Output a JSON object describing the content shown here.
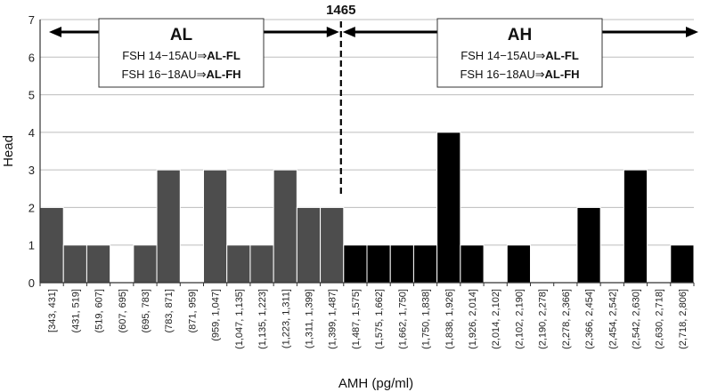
{
  "chart_data": {
    "type": "bar",
    "title": "",
    "xlabel": "AMH (pg/ml)",
    "ylabel": "Head",
    "ylim": [
      0,
      7
    ],
    "yticks": [
      "0",
      "1",
      "2",
      "3",
      "4",
      "5",
      "6",
      "7"
    ],
    "grid": "horizontal",
    "categories": [
      "[343, 431]",
      "(431, 519]",
      "(519, 607]",
      "(607, 695]",
      "(695, 783]",
      "(783, 871]",
      "(871, 959]",
      "(959, 1,047]",
      "(1,047, 1,135]",
      "(1,135, 1,223]",
      "(1,223, 1,311]",
      "(1,311, 1,399]",
      "(1,399, 1,487]",
      "(1,487, 1,575]",
      "(1,575, 1,662]",
      "(1,662, 1,750]",
      "(1,750, 1,838]",
      "(1,838, 1,926]",
      "(1,926, 2,014]",
      "(2,014, 2,102]",
      "(2,102, 2,190]",
      "(2,190, 2,278]",
      "(2,278, 2,366]",
      "(2,366, 2,454]",
      "(2,454, 2,542]",
      "(2,542, 2,630]",
      "(2,630, 2,718]",
      "(2,718, 2,806]"
    ],
    "values": [
      2,
      1,
      1,
      0,
      1,
      3,
      0,
      3,
      1,
      1,
      3,
      2,
      2,
      1,
      1,
      1,
      1,
      4,
      1,
      0,
      1,
      0,
      0,
      2,
      0,
      3,
      0,
      1
    ],
    "groups": [
      {
        "name": "AL",
        "color": "#4d4d4d",
        "first_index": 0,
        "last_index": 12
      },
      {
        "name": "AH",
        "color": "#000000",
        "first_index": 13,
        "last_index": 27
      }
    ],
    "threshold": {
      "label": "1465",
      "after_index": 12
    },
    "annotations": [
      {
        "title": "AL",
        "line1_prefix": "FSH 14−15AU⇒",
        "line1_bold": "AL-FL",
        "line2_prefix": "FSH 16−18AU⇒",
        "line2_bold": "AL-FH"
      },
      {
        "title": "AH",
        "line1_prefix": "FSH 14−15AU⇒",
        "line1_bold": "AL-FL",
        "line2_prefix": "FSH 16−18AU⇒",
        "line2_bold": "AL-FH"
      }
    ],
    "colors": {
      "grid": "#bdbdbd",
      "axis": "#333333",
      "arrow": "#000000"
    }
  }
}
